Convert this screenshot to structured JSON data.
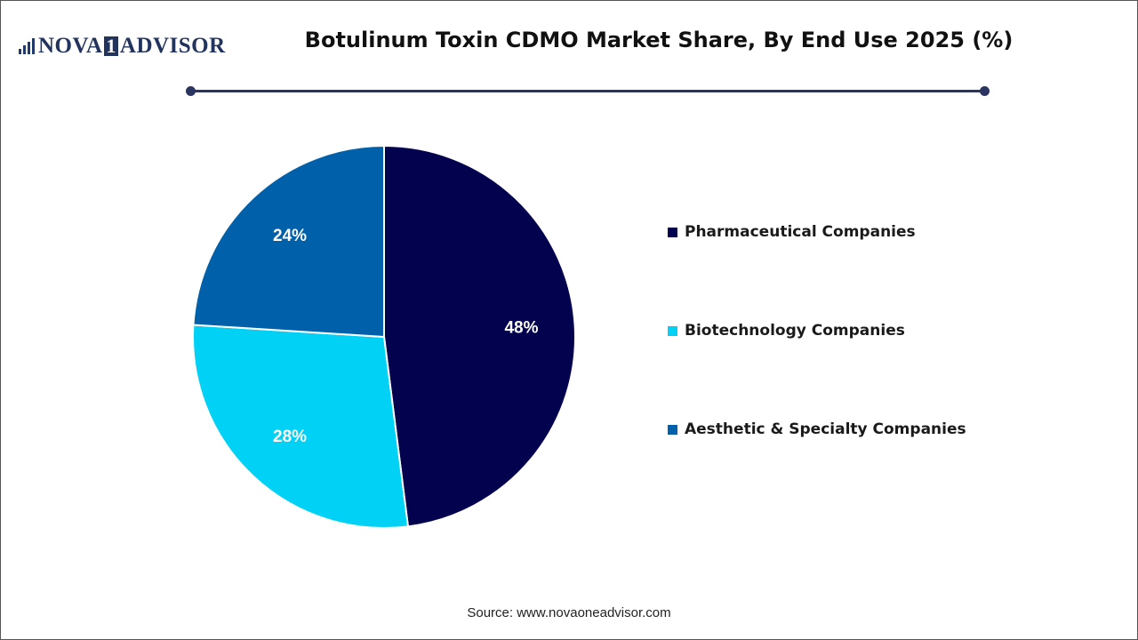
{
  "logo": {
    "text_left": "NOVA",
    "text_mid": "1",
    "text_right": "ADVISOR"
  },
  "chart_data": {
    "type": "pie",
    "title": "Botulinum Toxin CDMO Market Share, By End Use 2025 (%)",
    "slices": [
      {
        "label": "Pharmaceutical Companies",
        "value": 48,
        "display": "48%",
        "color": "#02024f"
      },
      {
        "label": "Biotechnology Companies",
        "value": 28,
        "display": "28%",
        "color": "#00d1f5"
      },
      {
        "label": "Aesthetic & Specialty Companies",
        "value": 24,
        "display": "24%",
        "color": "#0060aa"
      }
    ],
    "legend_position": "right",
    "start_angle": "12 o'clock",
    "direction": "clockwise"
  },
  "source": "Source: www.novaoneadvisor.com",
  "colors": {
    "title": "#111111",
    "rule": "#2b3561",
    "logo": "#22335e"
  }
}
